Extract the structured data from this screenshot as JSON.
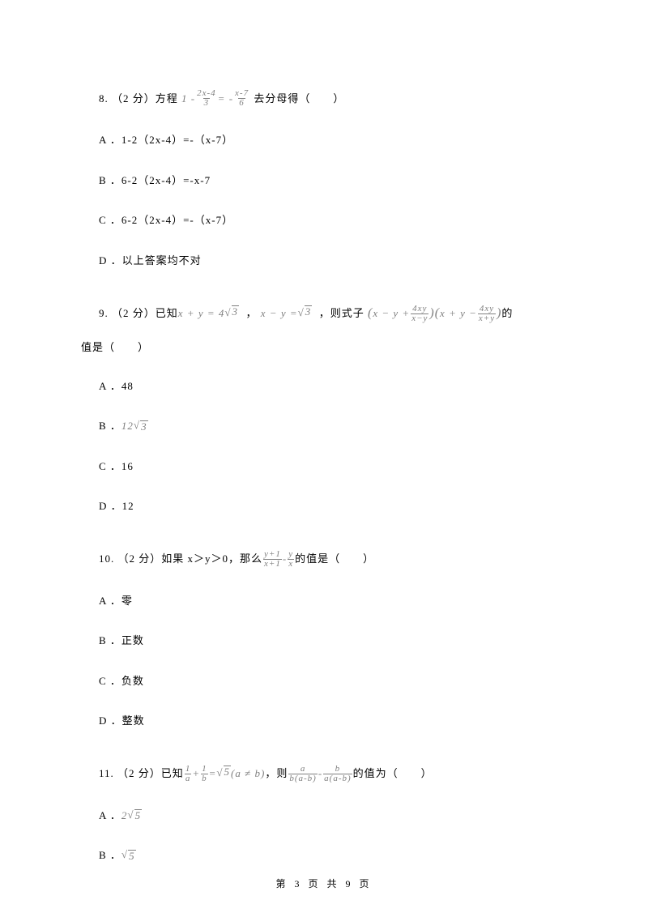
{
  "q8": {
    "num": "8.",
    "pts": "（2 分）",
    "pre": "方程",
    "eq_lhs": "1 -",
    "frac1_num": "2x-4",
    "frac1_den": "3",
    "mid": " = -",
    "frac2_num": "x-7",
    "frac2_den": "6",
    "post": "去分母得（　　）",
    "A": "A ．1-2（2x-4）=-（x-7）",
    "B": "B ．6-2（2x-4）=-x-7",
    "C": "C ．6-2（2x-4）=-（x-7）",
    "D": "D ．以上答案均不对"
  },
  "q9": {
    "num": "9.",
    "pts": "（2 分）",
    "pre": "已知 ",
    "eq1l": "x + y = 4",
    "sqrt1": "3",
    "sep1": "  ， ",
    "eq2l": "x − y = ",
    "sqrt2": "3",
    "sep2": "  ，则式子 ",
    "big_l1": "x − y + ",
    "bf1n": "4xy",
    "bf1d": "x−y",
    "big_m": "x + y − ",
    "bf2n": "4xy",
    "bf2d": "x+y",
    "post": " 的",
    "cont": "值是（　　）",
    "A": "A ．48",
    "Bpre": "B ．",
    "Bv": "12",
    "Bsqrt": "3",
    "C": "C ．16",
    "D": "D ．12"
  },
  "q10": {
    "num": "10.",
    "pts": "（2 分）",
    "pre": "如果 x＞y＞0，那么",
    "f1n": "y+1",
    "f1d": "x+1",
    "mid": " - ",
    "f2n": "y",
    "f2d": "x",
    "post": "的值是（　　）",
    "A": "A ．零",
    "B": "B ．正数",
    "C": "C ．负数",
    "D": "D ．整数"
  },
  "q11": {
    "num": "11.",
    "pts": "（2 分）",
    "pre": "已知",
    "fa_n": "1",
    "fa_d": "a",
    "plus": " + ",
    "fb_n": "1",
    "fb_d": "b",
    "eq": " = ",
    "sqrt5": "5",
    "cond": " (a ≠ b) ",
    "mid": "，则 ",
    "g1n": "a",
    "g1d": "b(a-b)",
    "minus": " - ",
    "g2n": "b",
    "g2d": "a(a-b)",
    "post": " 的值为（　　）",
    "Apre": "A ．",
    "Av": "2",
    "Asqrt": "5",
    "Bpre": "B ．",
    "Bsqrt": "5"
  },
  "footer": "第 3 页 共 9 页"
}
